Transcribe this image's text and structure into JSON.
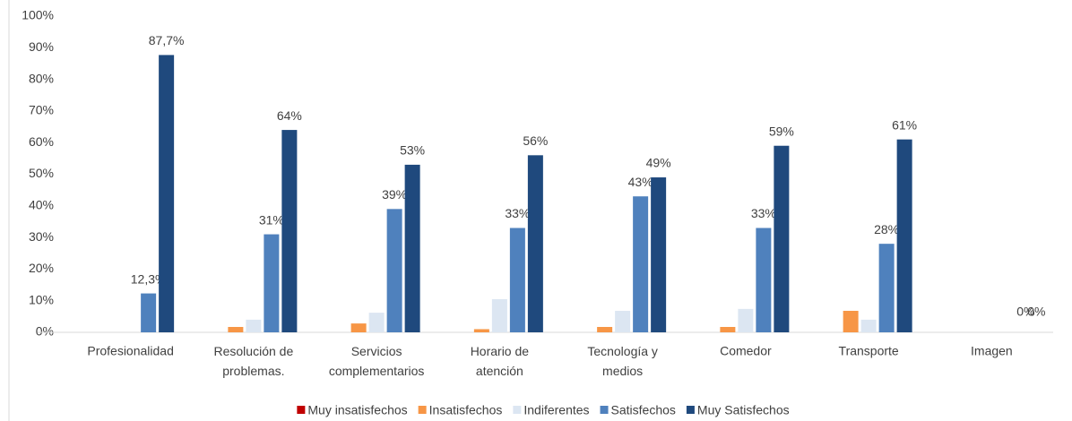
{
  "chart_data": {
    "type": "bar",
    "categories": [
      "Profesionalidad",
      "Resolución de problemas.",
      "Servicios complementarios",
      "Horario de atención",
      "Tecnología y medios",
      "Comedor",
      "Transporte",
      "Imagen"
    ],
    "series": [
      {
        "name": "Muy insatisfechos",
        "color": "#c00000",
        "values": [
          0,
          0,
          0,
          0,
          0,
          0,
          0,
          0
        ]
      },
      {
        "name": "Insatisfechos",
        "color": "#f79646",
        "values": [
          0,
          1.7,
          2.8,
          1,
          1.7,
          1.7,
          6.8,
          0
        ]
      },
      {
        "name": "Indiferentes",
        "color": "#dce6f2",
        "values": [
          0,
          4,
          6.2,
          10.5,
          6.8,
          7.4,
          4,
          0
        ]
      },
      {
        "name": "Satisfechos",
        "color": "#4f81bd",
        "values": [
          12.3,
          31,
          39,
          33,
          43,
          33,
          28,
          0
        ],
        "value_labels": [
          "12,3%",
          "31%",
          "39%",
          "33%",
          "43%",
          "33%",
          "28%",
          "0%"
        ]
      },
      {
        "name": "Muy Satisfechos",
        "color": "#1f497d",
        "values": [
          87.7,
          64,
          53,
          56,
          49,
          59,
          61,
          0
        ],
        "value_labels": [
          "87,7%",
          "64%",
          "53%",
          "56%",
          "49%",
          "59%",
          "61%",
          "0%"
        ]
      }
    ],
    "ylim": [
      0,
      100
    ],
    "yticks": [
      {
        "value": 0,
        "label": "0%"
      },
      {
        "value": 10,
        "label": "10%"
      },
      {
        "value": 20,
        "label": "20%"
      },
      {
        "value": 30,
        "label": "30%"
      },
      {
        "value": 40,
        "label": "40%"
      },
      {
        "value": 50,
        "label": "50%"
      },
      {
        "value": 60,
        "label": "60%"
      },
      {
        "value": 70,
        "label": "70%"
      },
      {
        "value": 80,
        "label": "80%"
      },
      {
        "value": 90,
        "label": "90%"
      },
      {
        "value": 100,
        "label": "100%"
      }
    ],
    "grid": false,
    "legend": "bottom"
  }
}
